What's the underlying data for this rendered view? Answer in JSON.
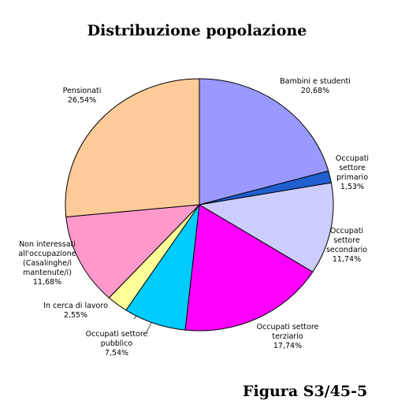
{
  "chart_data": {
    "type": "pie",
    "title": "Distribuzione popolazione",
    "categories": [
      "Bambini e studenti",
      "Occupati\nsettore\nprimario",
      "Occupati\nsettore\nsecondario",
      "Occupati settore\nterziario",
      "Occupati settore\npubblico",
      "In cerca di lavoro",
      "Non interessati\nall'occupazione\n(Casalinghe/i\nmantenute/i)",
      "Pensionati"
    ],
    "values": [
      20.68,
      1.53,
      11.74,
      17.74,
      7.54,
      2.55,
      11.68,
      26.54
    ],
    "value_labels": [
      "20,68%",
      "1,53%",
      "11,74%",
      "17,74%",
      "7,54%",
      "2,55%",
      "11,68%",
      "26,54%"
    ],
    "colors": [
      "#9999ff",
      "#1f5fd0",
      "#ccccff",
      "#ff00ff",
      "#00ccff",
      "#ffff99",
      "#ff99cc",
      "#ffcc99"
    ],
    "caption": "Figura S3/45-5"
  }
}
